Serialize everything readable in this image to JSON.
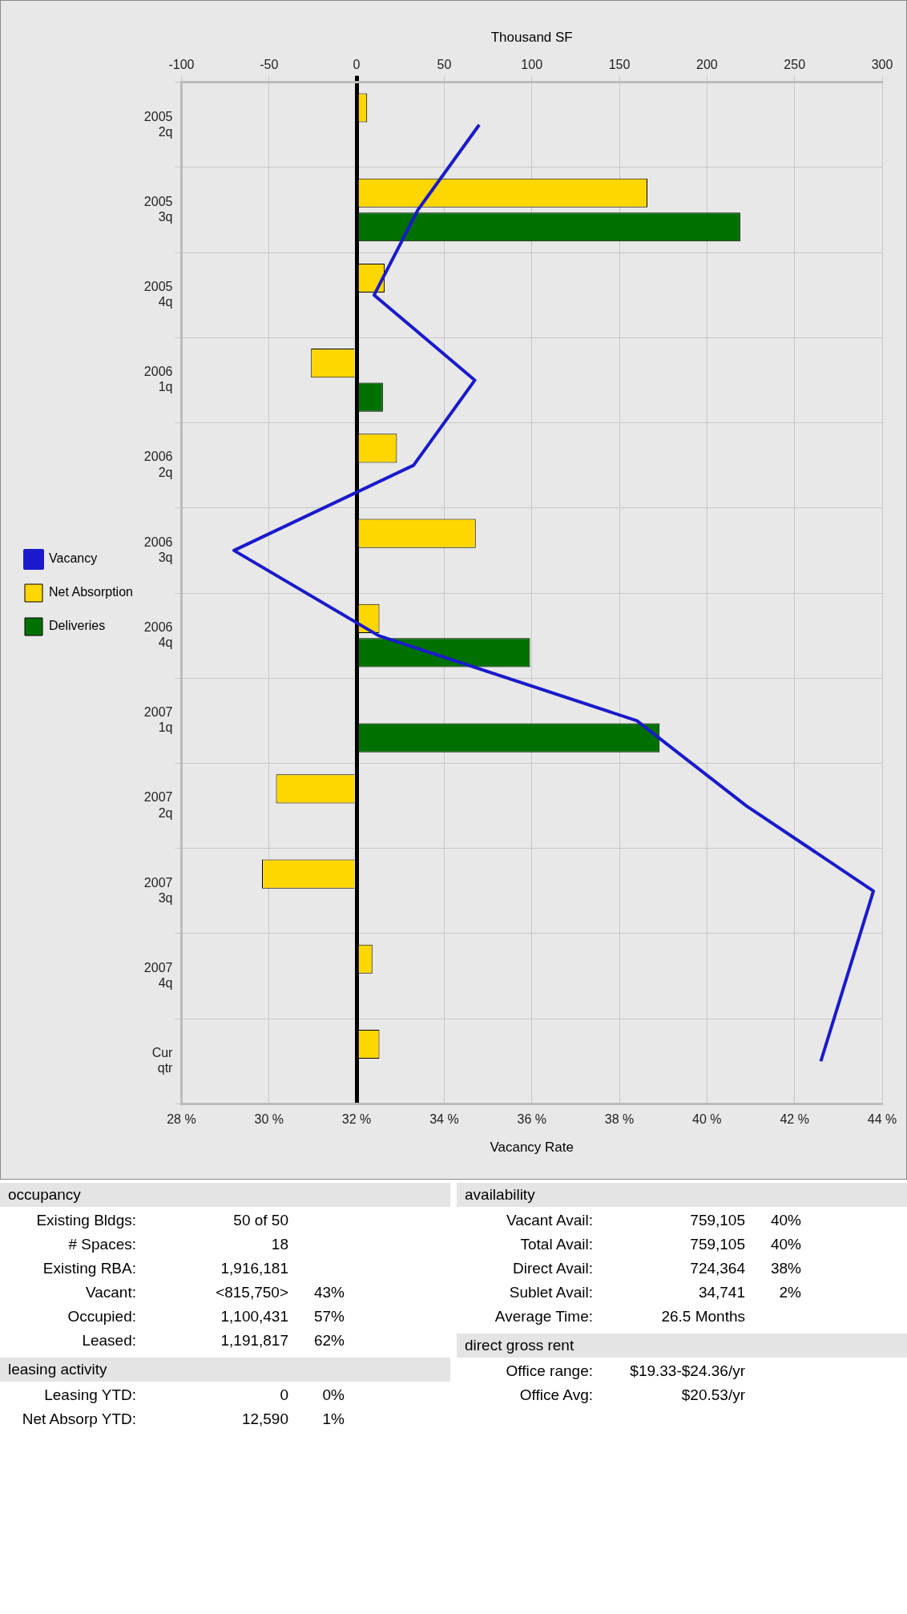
{
  "chart_data": [
    {
      "type": "bar",
      "orientation": "horizontal",
      "xlabel": "Thousand SF",
      "x2label": "Vacancy Rate",
      "categories": [
        "2005 2q",
        "2005 3q",
        "2005 4q",
        "2006 1q",
        "2006 2q",
        "2006 3q",
        "2006 4q",
        "2007 1q",
        "2007 2q",
        "2007 3q",
        "2007 4q",
        "Cur qtr"
      ],
      "series": [
        {
          "name": "Net Absorption",
          "color": "#ffd700",
          "values": [
            6,
            166,
            16,
            -26,
            23,
            68,
            13,
            null,
            -46,
            -54,
            9,
            13
          ]
        },
        {
          "name": "Deliveries",
          "color": "#007000",
          "values": [
            null,
            219,
            null,
            15,
            null,
            null,
            99,
            173,
            null,
            null,
            null,
            null
          ]
        },
        {
          "name": "Vacancy",
          "type": "line",
          "axis": "x2",
          "color": "#1a1acc",
          "values": [
            34.8,
            33.4,
            32.4,
            34.7,
            33.3,
            29.2,
            32.5,
            38.4,
            40.9,
            43.8,
            43.2,
            42.6
          ]
        }
      ],
      "xlim": [
        -100,
        300
      ],
      "xticks": [
        -100,
        -50,
        0,
        50,
        100,
        150,
        200,
        250,
        300
      ],
      "x2lim": [
        28,
        44
      ],
      "x2ticks": [
        {
          "value": 28,
          "label": "28 %"
        },
        {
          "value": 30,
          "label": "30 %"
        },
        {
          "value": 32,
          "label": "32 %"
        },
        {
          "value": 34,
          "label": "34 %"
        },
        {
          "value": 36,
          "label": "36 %"
        },
        {
          "value": 38,
          "label": "38 %"
        },
        {
          "value": 40,
          "label": "40 %"
        },
        {
          "value": 42,
          "label": "42 %"
        },
        {
          "value": 44,
          "label": "44 %"
        }
      ],
      "grid": true,
      "legend": "left",
      "marker": "none"
    },
    {
      "type": "other",
      "title": "occupancy",
      "annotations": [
        "Existing Bldgs:",
        "50 of 50",
        null,
        "# Spaces:",
        "18",
        null,
        "Existing RBA:",
        "1,916,181",
        null,
        "Vacant:",
        "<815,750>",
        "43%",
        "Occupied:",
        "1,100,431",
        "57%",
        "Leased:",
        "1,191,817",
        "62%"
      ]
    },
    {
      "type": "other",
      "title": "availability",
      "annotations": [
        "Vacant Avail:",
        "759,105",
        "40%",
        "Total Avail:",
        "759,105",
        "40%",
        "Direct Avail:",
        "724,364",
        "38%",
        "Sublet Avail:",
        "34,741",
        "2%",
        "Average Time:",
        "26.5 Months",
        null
      ]
    },
    {
      "type": "other",
      "title": "leasing activity",
      "annotations": [
        "Leasing YTD:",
        "0",
        "0%",
        "Net Absorp YTD:",
        "12,590",
        "1%"
      ]
    },
    {
      "type": "other",
      "title": "direct gross rent",
      "annotations": [
        "Office range:",
        "$19.33-$24.36/yr",
        null,
        "Office Avg:",
        "$20.53/yr",
        null
      ]
    }
  ]
}
